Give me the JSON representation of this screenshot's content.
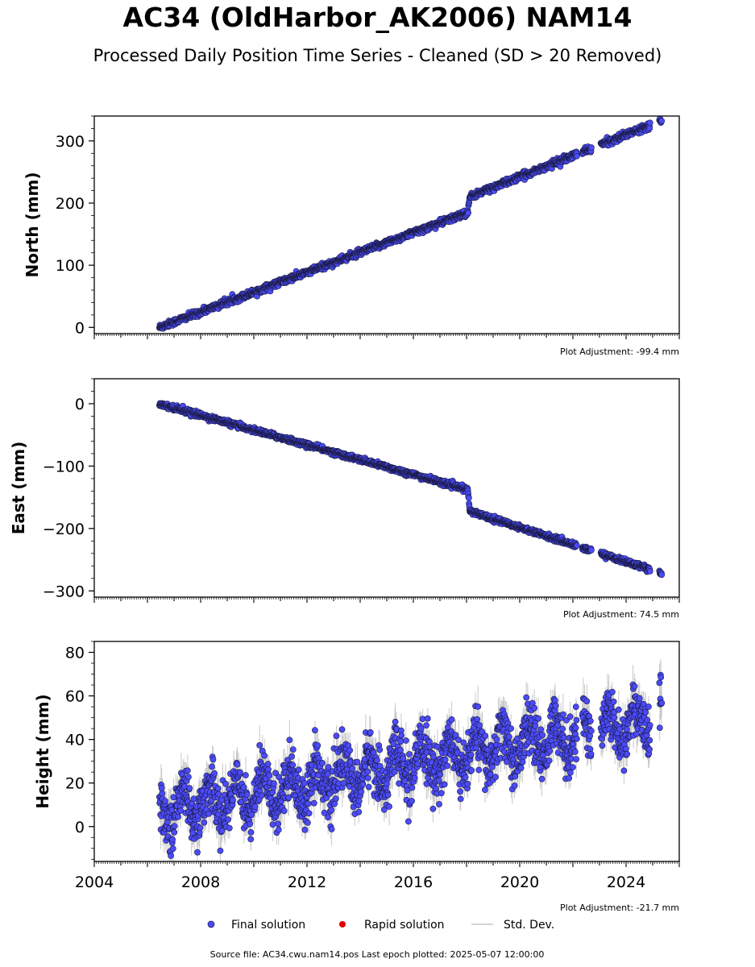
{
  "title": "AC34 (OldHarbor_AK2006) NAM14",
  "subtitle": "Processed Daily Position Time Series - Cleaned (SD > 20 Removed)",
  "chart_data": [
    {
      "type": "scatter",
      "ylabel": "North (mm)",
      "xlim": [
        2004.0,
        2026.0
      ],
      "ylim": [
        -10,
        340
      ],
      "yticks": [
        0,
        100,
        200,
        300
      ],
      "yminor_step": 20,
      "adjustment": "Plot Adjustment: -99.4 mm",
      "series_key": "north",
      "trend": [
        [
          2006.45,
          0
        ],
        [
          2018.05,
          185
        ],
        [
          2018.12,
          210
        ],
        [
          2025.35,
          333
        ]
      ],
      "noise": 2.5,
      "sd": 3,
      "x_tick_labels_shown": false
    },
    {
      "type": "scatter",
      "ylabel": "East (mm)",
      "xlim": [
        2004.0,
        2026.0
      ],
      "ylim": [
        -310,
        40
      ],
      "yticks": [
        0,
        -100,
        -200,
        -300
      ],
      "yminor_step": 20,
      "adjustment": "Plot Adjustment: 74.5 mm",
      "series_key": "east",
      "trend": [
        [
          2006.45,
          0
        ],
        [
          2018.05,
          -138
        ],
        [
          2018.12,
          -172
        ],
        [
          2025.35,
          -272
        ]
      ],
      "noise": 2.0,
      "sd": 2,
      "x_tick_labels_shown": false
    },
    {
      "type": "scatter",
      "ylabel": "Height (mm)",
      "xlim": [
        2004.0,
        2026.0
      ],
      "ylim": [
        -16,
        85
      ],
      "yticks": [
        0,
        20,
        40,
        60,
        80
      ],
      "yminor_step": 5,
      "adjustment": "Plot Adjustment: -21.7 mm",
      "series_key": "height",
      "trend": [
        [
          2006.45,
          7
        ],
        [
          2025.35,
          50
        ]
      ],
      "seasonal": 8,
      "noise": 6,
      "sd": 6,
      "x_tick_labels_shown": true
    }
  ],
  "x_ticks": [
    2004,
    2008,
    2012,
    2016,
    2020,
    2024
  ],
  "x_tick_labels": [
    "2004",
    "2008",
    "2012",
    "2016",
    "2020",
    "2024"
  ],
  "data_gaps": [
    [
      2022.15,
      2022.35
    ],
    [
      2022.7,
      2023.05
    ],
    [
      2024.9,
      2025.25
    ]
  ],
  "legend": {
    "final": "Final solution",
    "rapid": "Rapid solution",
    "std": "Std. Dev."
  },
  "colors": {
    "final_fill": "#4b4bfa",
    "final_edge": "#1a1a40",
    "rapid": "#e00000",
    "std": "#c8c8c8"
  },
  "source_line": "Source file: AC34.cwu.nam14.pos  Last epoch plotted: 2025-05-07 12:00:00"
}
